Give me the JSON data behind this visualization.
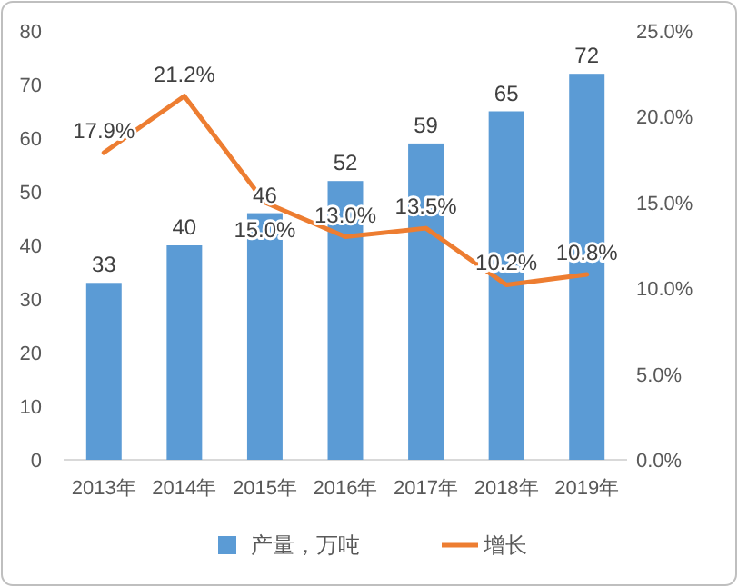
{
  "chart_data": {
    "type": "bar",
    "categories": [
      "2013年",
      "2014年",
      "2015年",
      "2016年",
      "2017年",
      "2018年",
      "2019年"
    ],
    "series": [
      {
        "name": "产量，万吨",
        "color": "#5b9bd5",
        "values": [
          33,
          40,
          46,
          52,
          59,
          65,
          72
        ],
        "value_labels": [
          "33",
          "40",
          "46",
          "52",
          "59",
          "65",
          "72"
        ]
      },
      {
        "name": "增长",
        "type": "line",
        "axis": "y2",
        "color": "#ed7d31",
        "values": [
          17.9,
          21.2,
          15.0,
          13.0,
          13.5,
          10.2,
          10.8
        ],
        "value_labels": [
          "17.9%",
          "21.2%",
          "15.0%",
          "13.0%",
          "13.5%",
          "10.2%",
          "10.8%"
        ]
      }
    ],
    "ylim": [
      0,
      80
    ],
    "yticks": [
      0,
      10,
      20,
      30,
      40,
      50,
      60,
      70,
      80
    ],
    "y2lim": [
      0,
      25
    ],
    "y2ticks": [
      {
        "value": 0,
        "label": "0.0%"
      },
      {
        "value": 5,
        "label": "5.0%"
      },
      {
        "value": 10,
        "label": "10.0%"
      },
      {
        "value": 15,
        "label": "15.0%"
      },
      {
        "value": 20,
        "label": "20.0%"
      },
      {
        "value": 25,
        "label": "25.0%"
      }
    ],
    "legend": "bottom",
    "grid": false
  }
}
